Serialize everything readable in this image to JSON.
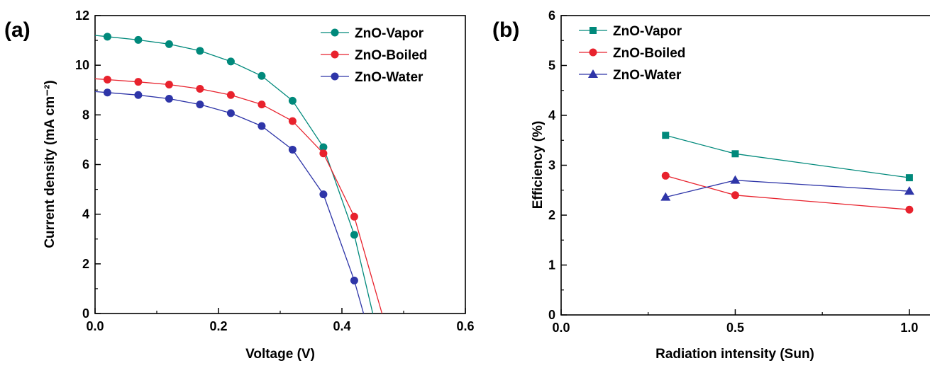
{
  "chart_data": [
    {
      "type": "line",
      "panel_label": "(a)",
      "xlabel": "Voltage (V)",
      "ylabel": "Current density (mA cm⁻²)",
      "xlim": [
        0.0,
        0.6
      ],
      "ylim": [
        0,
        12
      ],
      "x_ticks": [
        "0.0",
        "0.2",
        "0.4",
        "0.6"
      ],
      "y_ticks": [
        "0",
        "2",
        "4",
        "6",
        "8",
        "10",
        "12"
      ],
      "legend_position": "top-right",
      "series": [
        {
          "name": "ZnO-Vapor",
          "color": "#00897b",
          "marker": "circle",
          "x": [
            0.02,
            0.07,
            0.12,
            0.17,
            0.22,
            0.27,
            0.32,
            0.37,
            0.42
          ],
          "y": [
            11.15,
            11.02,
            10.85,
            10.58,
            10.15,
            9.57,
            8.57,
            6.7,
            3.17
          ],
          "curve_tail": [
            [
              0.45,
              0
            ]
          ]
        },
        {
          "name": "ZnO-Boiled",
          "color": "#e8222d",
          "marker": "circle",
          "x": [
            0.02,
            0.07,
            0.12,
            0.17,
            0.22,
            0.27,
            0.32,
            0.37,
            0.42
          ],
          "y": [
            9.42,
            9.33,
            9.22,
            9.05,
            8.8,
            8.42,
            7.75,
            6.45,
            3.9
          ],
          "curve_tail": [
            [
              0.465,
              0
            ]
          ]
        },
        {
          "name": "ZnO-Water",
          "color": "#2e35a8",
          "marker": "circle",
          "x": [
            0.02,
            0.07,
            0.12,
            0.17,
            0.22,
            0.27,
            0.32,
            0.37,
            0.42
          ],
          "y": [
            8.9,
            8.8,
            8.65,
            8.42,
            8.07,
            7.55,
            6.6,
            4.8,
            1.33
          ],
          "curve_tail": [
            [
              0.435,
              0
            ]
          ]
        }
      ]
    },
    {
      "type": "line",
      "panel_label": "(b)",
      "xlabel": "Radiation intensity (Sun)",
      "ylabel": "Efficiency (%)",
      "xlim": [
        0.0,
        1.1
      ],
      "ylim": [
        0,
        6
      ],
      "x_ticks": [
        "0.0",
        "0.5",
        "1.0"
      ],
      "y_ticks": [
        "0",
        "1",
        "2",
        "3",
        "4",
        "5",
        "6"
      ],
      "legend_position": "top-left",
      "series": [
        {
          "name": "ZnO-Vapor",
          "color": "#00897b",
          "marker": "square",
          "x": [
            0.3,
            0.5,
            1.0
          ],
          "y": [
            3.6,
            3.23,
            2.75
          ]
        },
        {
          "name": "ZnO-Boiled",
          "color": "#e8222d",
          "marker": "circle",
          "x": [
            0.3,
            0.5,
            1.0
          ],
          "y": [
            2.79,
            2.4,
            2.11
          ]
        },
        {
          "name": "ZnO-Water",
          "color": "#2e35a8",
          "marker": "triangle",
          "x": [
            0.3,
            0.5,
            1.0
          ],
          "y": [
            2.36,
            2.7,
            2.48
          ]
        }
      ]
    }
  ]
}
